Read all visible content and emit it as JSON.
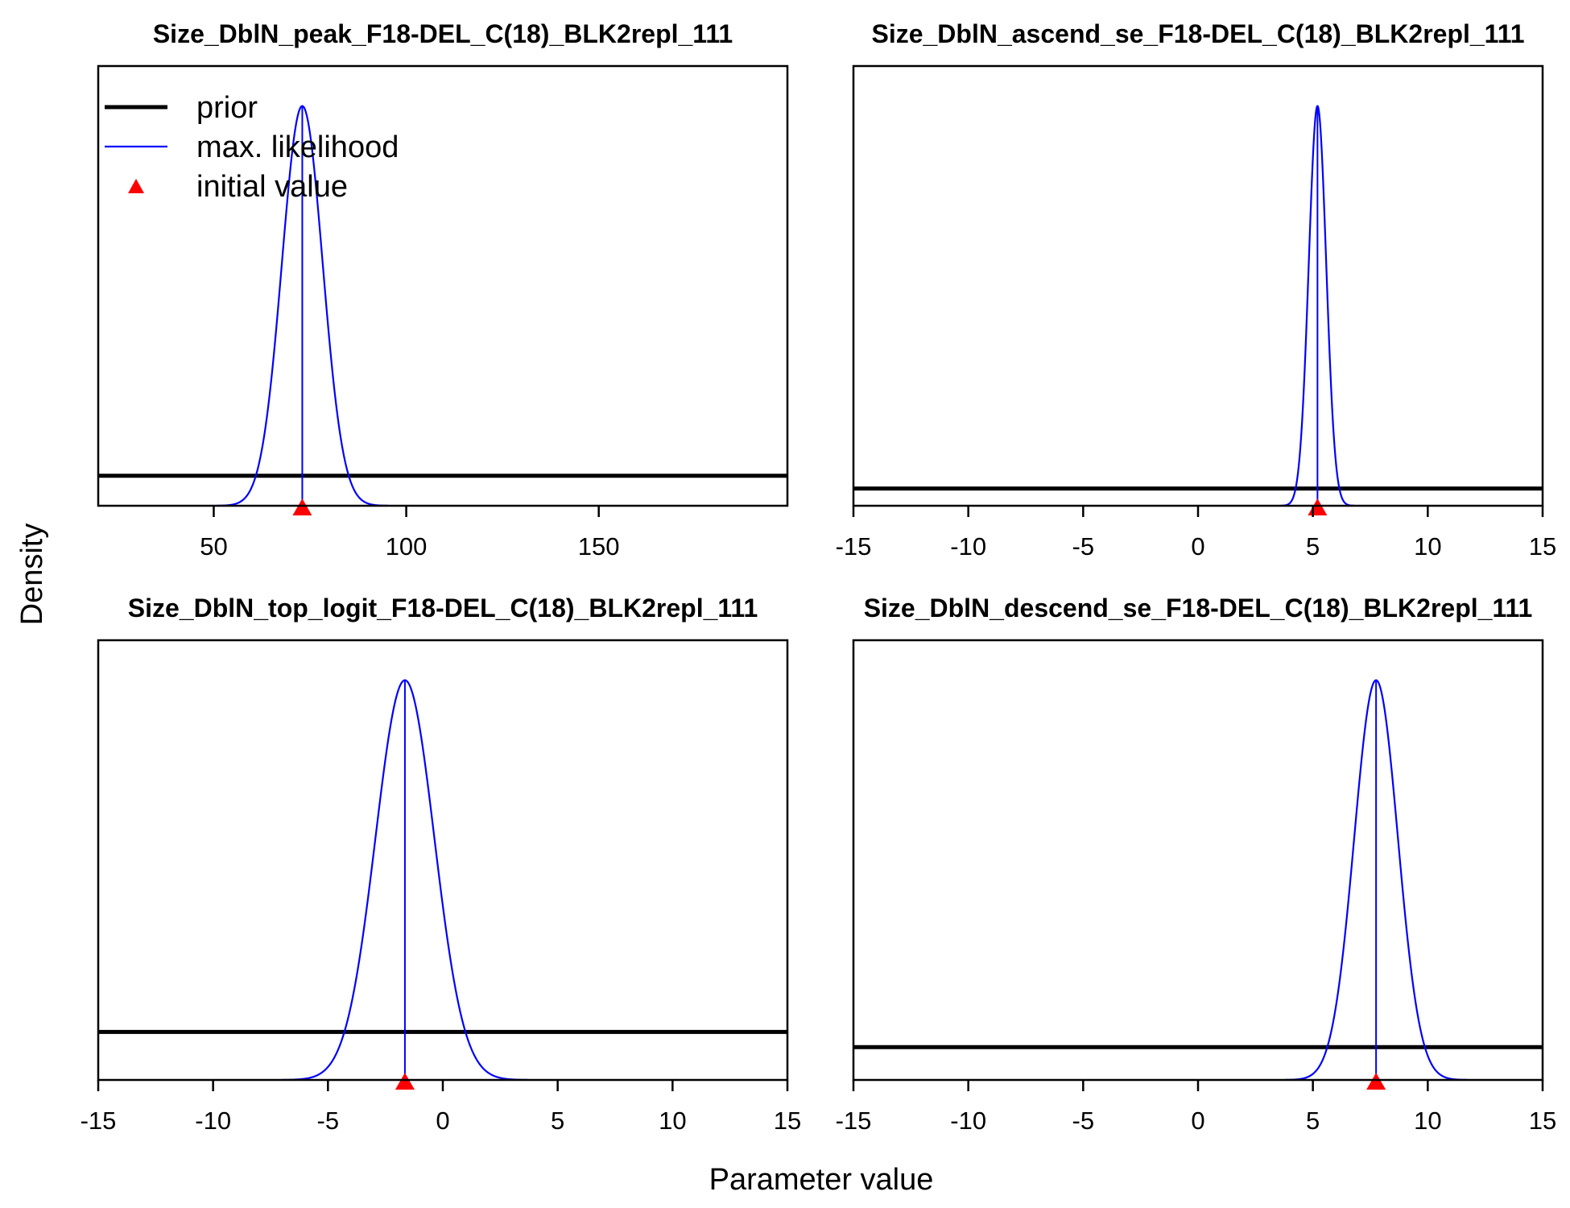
{
  "figure": {
    "xlabel": "Parameter value",
    "ylabel": "Density"
  },
  "legend": {
    "placement": "top-left of first panel",
    "items": [
      {
        "label": "prior",
        "symbol": "thick-line",
        "color": "#000000"
      },
      {
        "label": "max. likelihood",
        "symbol": "thin-line",
        "color": "#0000FF"
      },
      {
        "label": "initial value",
        "symbol": "triangle",
        "color": "#FF0000"
      }
    ]
  },
  "colors": {
    "prior": "#000000",
    "max_likelihood": "#0000FF",
    "initial_value": "#FF0000"
  },
  "chart_data": [
    {
      "type": "line",
      "title": "Size_DblN_peak_F18-DEL_C(18)_BLK2repl_111",
      "xlim": [
        20,
        199
      ],
      "xticks": [
        50,
        100,
        150
      ],
      "ylim": [
        0,
        1.1
      ],
      "grid": false,
      "prior": {
        "type": "uniform",
        "density": 0.075
      },
      "max_likelihood": {
        "mean": 73,
        "sd": 5.3,
        "peak": 1.0
      },
      "initial_value": 73
    },
    {
      "type": "line",
      "title": "Size_DblN_ascend_se_F18-DEL_C(18)_BLK2repl_111",
      "xlim": [
        -15,
        15
      ],
      "xticks": [
        -15,
        -10,
        -5,
        0,
        5,
        10,
        15
      ],
      "ylim": [
        0,
        1.1
      ],
      "grid": false,
      "prior": {
        "type": "uniform",
        "density": 0.043
      },
      "max_likelihood": {
        "mean": 5.2,
        "sd": 0.38,
        "peak": 1.0
      },
      "initial_value": 5.2
    },
    {
      "type": "line",
      "title": "Size_DblN_top_logit_F18-DEL_C(18)_BLK2repl_111",
      "xlim": [
        -15,
        15
      ],
      "xticks": [
        -15,
        -10,
        -5,
        0,
        5,
        10,
        15
      ],
      "ylim": [
        0,
        1.1
      ],
      "grid": false,
      "prior": {
        "type": "uniform",
        "density": 0.12
      },
      "max_likelihood": {
        "mean": -1.65,
        "sd": 1.28,
        "peak": 1.0
      },
      "initial_value": -1.65
    },
    {
      "type": "line",
      "title": "Size_DblN_descend_se_F18-DEL_C(18)_BLK2repl_111",
      "xlim": [
        -15,
        15
      ],
      "xticks": [
        -15,
        -10,
        -5,
        0,
        5,
        10,
        15
      ],
      "ylim": [
        0,
        1.1
      ],
      "grid": false,
      "prior": {
        "type": "uniform",
        "density": 0.082
      },
      "max_likelihood": {
        "mean": 7.75,
        "sd": 0.95,
        "peak": 1.0
      },
      "initial_value": 7.75
    }
  ]
}
